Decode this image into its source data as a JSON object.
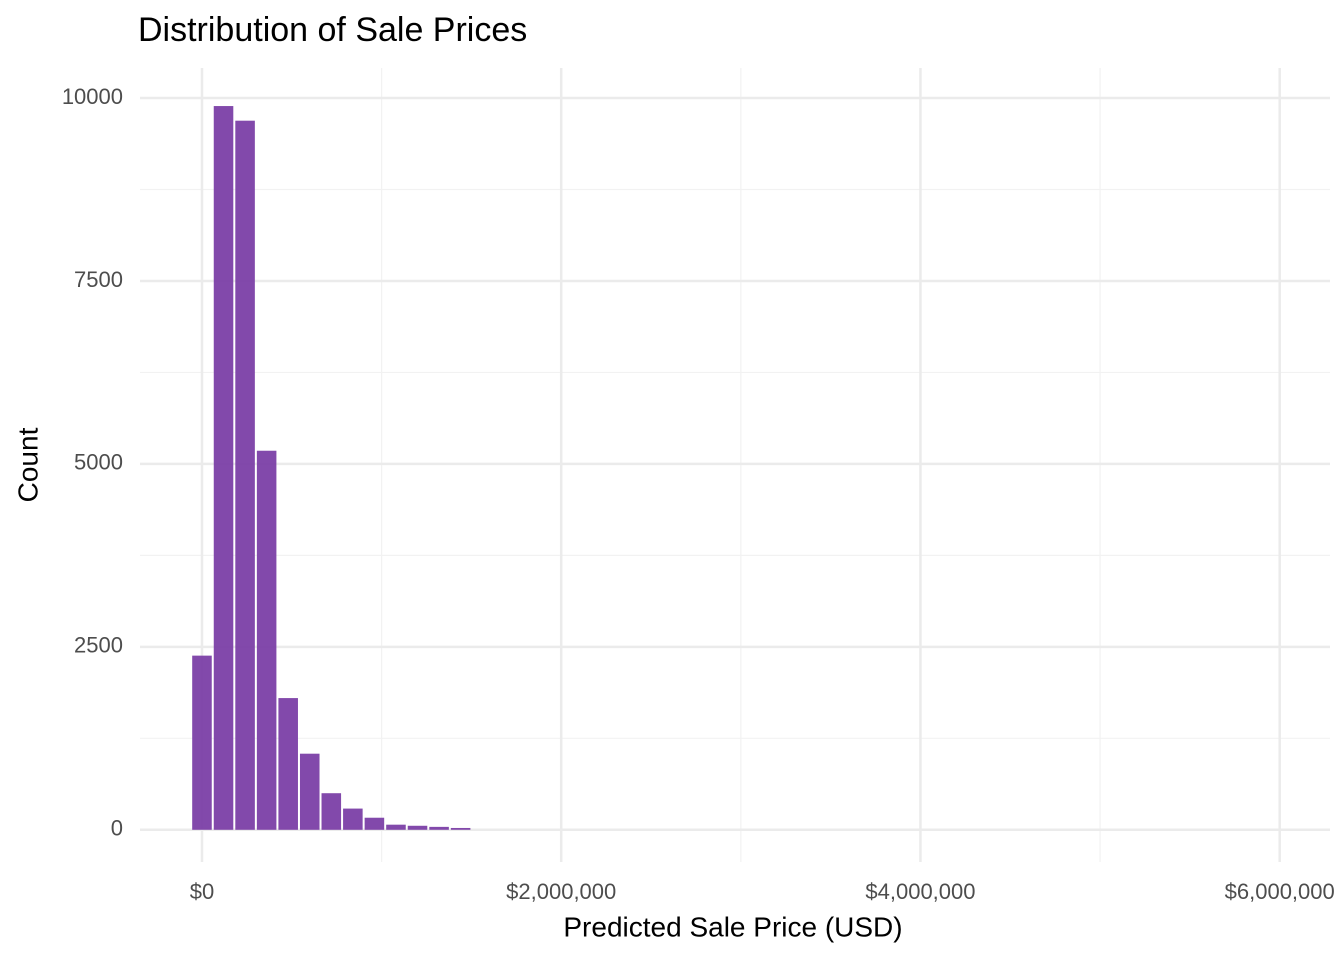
{
  "chart_data": {
    "type": "histogram",
    "title": "Distribution of  Sale Prices",
    "x_label": "Predicted Sale Price (USD)",
    "y_label": "Count",
    "bins": [
      -60000,
      60000,
      180000,
      300000,
      420000,
      540000,
      660000,
      780000,
      900000,
      1020000,
      1140000,
      1260000,
      1380000,
      1500000
    ],
    "values": [
      2380,
      9890,
      9690,
      5180,
      1800,
      1040,
      500,
      290,
      165,
      70,
      55,
      40,
      25
    ],
    "color": "#7B3FA6",
    "xlim": [
      -345000,
      6280000
    ],
    "ylim": [
      -440,
      10410
    ],
    "xticks": [
      {
        "value": 0,
        "label": "$0"
      },
      {
        "value": 2000000,
        "label": "$2,000,000"
      },
      {
        "value": 4000000,
        "label": "$4,000,000"
      },
      {
        "value": 6000000,
        "label": "$6,000,000"
      }
    ],
    "yticks": [
      0,
      2500,
      5000,
      7500,
      10000
    ],
    "grid": true
  }
}
